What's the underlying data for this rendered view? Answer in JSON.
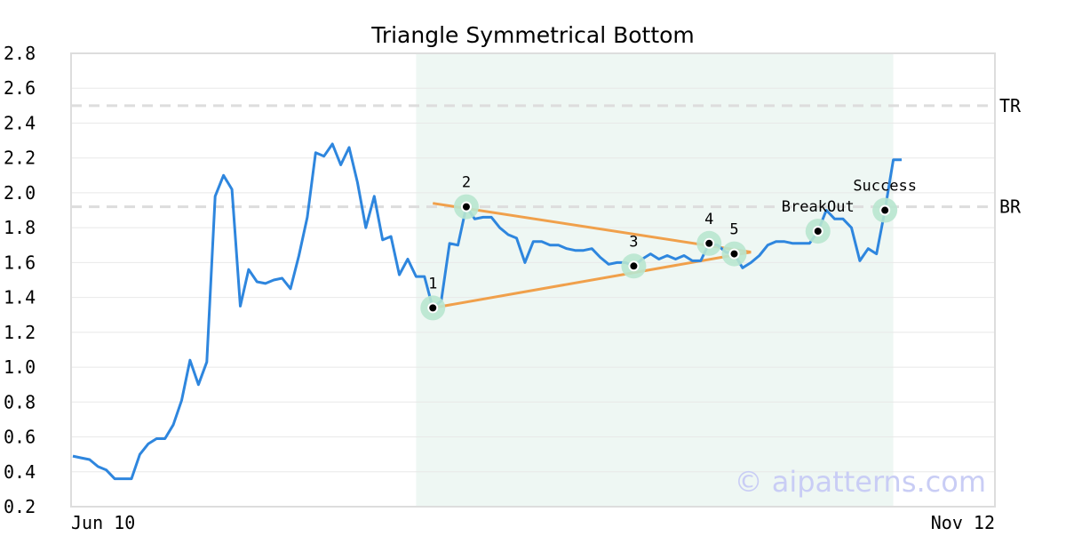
{
  "chart_data": {
    "type": "line",
    "title": "Triangle Symmetrical Bottom",
    "ylim": [
      0.2,
      2.8
    ],
    "y_ticks": [
      "0.2",
      "0.4",
      "0.6",
      "0.8",
      "1.0",
      "1.2",
      "1.4",
      "1.6",
      "1.8",
      "2.0",
      "2.2",
      "2.4",
      "2.6",
      "2.8"
    ],
    "x_tick_labels": [
      "Jun 10",
      "Nov 12"
    ],
    "grid": true,
    "series": [
      {
        "color": "#2e86de",
        "values": [
          0.49,
          0.48,
          0.47,
          0.43,
          0.41,
          0.36,
          0.36,
          0.36,
          0.5,
          0.56,
          0.59,
          0.59,
          0.67,
          0.81,
          1.04,
          0.9,
          1.03,
          1.98,
          2.1,
          2.02,
          1.35,
          1.56,
          1.49,
          1.48,
          1.5,
          1.51,
          1.45,
          1.64,
          1.86,
          2.23,
          2.21,
          2.28,
          2.16,
          2.26,
          2.06,
          1.8,
          1.98,
          1.73,
          1.75,
          1.53,
          1.62,
          1.52,
          1.52,
          1.34,
          1.38,
          1.71,
          1.7,
          1.92,
          1.85,
          1.86,
          1.86,
          1.8,
          1.76,
          1.74,
          1.6,
          1.72,
          1.72,
          1.7,
          1.7,
          1.68,
          1.67,
          1.67,
          1.68,
          1.63,
          1.59,
          1.6,
          1.6,
          1.58,
          1.62,
          1.65,
          1.62,
          1.64,
          1.62,
          1.64,
          1.61,
          1.61,
          1.71,
          1.7,
          1.66,
          1.65,
          1.57,
          1.6,
          1.64,
          1.7,
          1.72,
          1.72,
          1.71,
          1.71,
          1.71,
          1.78,
          1.9,
          1.85,
          1.85,
          1.8,
          1.61,
          1.68,
          1.65,
          1.9,
          2.19,
          2.19
        ]
      }
    ],
    "shaded_region": {
      "x_start": 41,
      "x_end": 98,
      "color": "#eef7f3"
    },
    "reference_lines": [
      {
        "label": "TR",
        "y": 2.5,
        "color": "#dddddd"
      },
      {
        "label": "BR",
        "y": 1.92,
        "color": "#dddddd"
      }
    ],
    "trend_lines": [
      {
        "from": [
          43,
          1.94
        ],
        "to": [
          81,
          1.66
        ],
        "color": "#f0a04b"
      },
      {
        "from": [
          43,
          1.34
        ],
        "to": [
          81,
          1.66
        ],
        "color": "#f0a04b"
      }
    ],
    "points": [
      {
        "label": "1",
        "x": 43,
        "y": 1.34
      },
      {
        "label": "2",
        "x": 47,
        "y": 1.92
      },
      {
        "label": "3",
        "x": 67,
        "y": 1.58
      },
      {
        "label": "4",
        "x": 76,
        "y": 1.71
      },
      {
        "label": "5",
        "x": 79,
        "y": 1.65
      },
      {
        "label": "BreakOut",
        "x": 89,
        "y": 1.78
      },
      {
        "label": "Success",
        "x": 97,
        "y": 1.9
      }
    ],
    "point_marker_color": "#b8e6cf"
  },
  "watermark": "© aipatterns.com"
}
